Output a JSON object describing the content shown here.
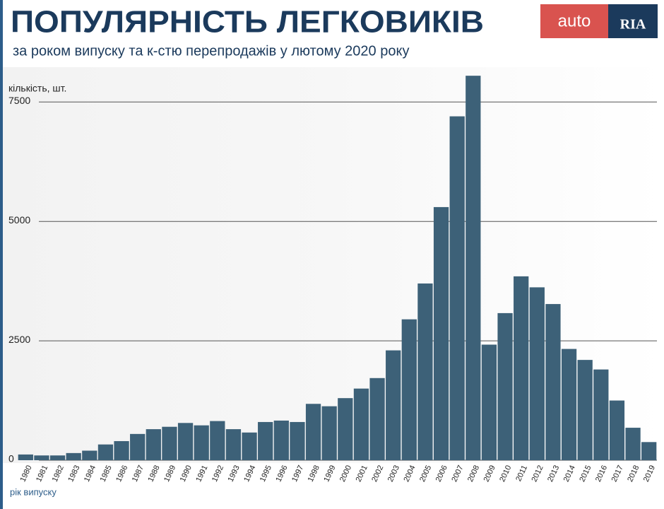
{
  "chart_data": {
    "type": "bar",
    "title": "ПОПУЛЯРНІСТЬ ЛЕГКОВИКІВ",
    "subtitle": "за роком випуску та к-стю перепродажів у лютому 2020 року",
    "logo": {
      "left": "auto",
      "right": "RIA"
    },
    "y_axis_label": "кількість, шт.",
    "x_axis_label": "рік випуску",
    "categories": [
      "1980",
      "1981",
      "1982",
      "1983",
      "1984",
      "1985",
      "1986",
      "1987",
      "1988",
      "1989",
      "1990",
      "1991",
      "1992",
      "1993",
      "1994",
      "1995",
      "1996",
      "1997",
      "1998",
      "1999",
      "2000",
      "2001",
      "2002",
      "2003",
      "2004",
      "2005",
      "2006",
      "2007",
      "2008",
      "2009",
      "2010",
      "2011",
      "2012",
      "2013",
      "2014",
      "2015",
      "2016",
      "2017",
      "2018",
      "2019"
    ],
    "values": [
      120,
      100,
      100,
      150,
      200,
      330,
      400,
      550,
      650,
      700,
      780,
      730,
      820,
      650,
      580,
      800,
      830,
      800,
      1180,
      1130,
      1300,
      1500,
      1720,
      2300,
      2950,
      3700,
      5300,
      7200,
      8050,
      2420,
      3080,
      3850,
      3620,
      3270,
      2330,
      2100,
      1900,
      1250,
      680,
      380
    ],
    "color": "#3d6178",
    "ylim": [
      0,
      8200
    ],
    "yticks": [
      0,
      2500,
      5000,
      7500
    ],
    "grid": true
  }
}
